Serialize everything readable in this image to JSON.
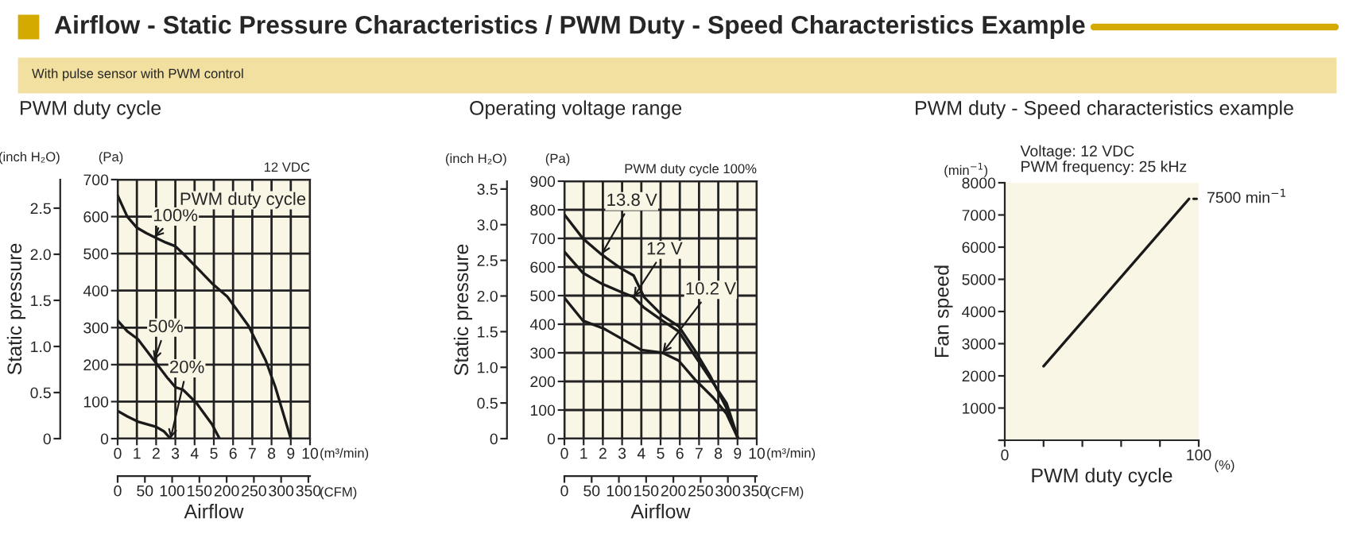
{
  "chart_data": [
    {
      "type": "line",
      "title": "PWM duty cycle",
      "xlabel": "Airflow",
      "y2label": "Static pressure",
      "legend_title": "PWM duty cycle",
      "annotations": [
        "Airflow - Static Pressure Characteristics / PWM Duty - Speed Characteristics Example",
        "With pulse sensor with PWM control",
        "12 VDC",
        "(inch H₂O)",
        "(Pa)",
        "(m³/min)",
        "(CFM)"
      ],
      "series": [
        {
          "name": "100%",
          "color": "#1a1a1a",
          "x": [
            0,
            0.5,
            1,
            1.5,
            1.9,
            2.5,
            3,
            3.5,
            4.1,
            4.9,
            5.7,
            6.8,
            7.7,
            8.2,
            9
          ],
          "values": [
            657,
            600,
            570,
            555,
            545,
            530,
            520,
            495,
            463,
            420,
            384,
            305,
            211,
            139,
            0
          ]
        },
        {
          "name": "50%",
          "color": "#1a1a1a",
          "x": [
            0,
            0.5,
            1.05,
            1.9,
            2.5,
            3,
            3.4,
            4.1,
            4.9,
            5.3
          ],
          "values": [
            319,
            290,
            269,
            211,
            170,
            139,
            132,
            96,
            39,
            0
          ]
        },
        {
          "name": "20%",
          "color": "#1a1a1a",
          "x": [
            0,
            0.5,
            1.05,
            2,
            2.4,
            2.75
          ],
          "values": [
            75,
            60,
            46,
            32,
            20,
            0
          ]
        }
      ],
      "xlim": [
        0,
        10
      ],
      "xticks": [
        0,
        1,
        2,
        3,
        4,
        5,
        6,
        7,
        8,
        9,
        10
      ],
      "x2lim": [
        0,
        353
      ],
      "x2ticks": [
        0,
        50,
        100,
        150,
        200,
        250,
        300,
        350
      ],
      "ylim": [
        0,
        700
      ],
      "yticks": [
        0,
        100,
        200,
        300,
        400,
        500,
        600,
        700
      ],
      "legend": "bottom left",
      "y2lim": [
        0,
        2.81
      ],
      "y2ticks": [
        0,
        0.5,
        {
          "value": 1,
          "label": "1.0"
        },
        1.5,
        {
          "value": 2,
          "label": "2.0"
        },
        2.5
      ],
      "grid": true
    },
    {
      "type": "line",
      "title": "Operating voltage range",
      "xlabel": "Airflow",
      "y2label": "Static pressure",
      "annotations": [
        "PWM duty cycle 100%",
        "(inch H₂O)",
        "(Pa)",
        "(m³/min)",
        "(CFM)"
      ],
      "series": [
        {
          "name": "13.8 V",
          "color": "#1a1a1a",
          "x": [
            0,
            0.97,
            1.93,
            2.9,
            3.6,
            4.14,
            5.1,
            5.94,
            6.77,
            7.6,
            8.43,
            9.03
          ],
          "values": [
            783,
            699,
            644,
            597,
            570,
            495,
            430,
            393,
            310,
            217,
            106,
            0
          ]
        },
        {
          "name": "12 V",
          "color": "#1a1a1a",
          "x": [
            0,
            0.97,
            1.93,
            2.9,
            3.6,
            4.14,
            5.1,
            5.94,
            6.77,
            7.6,
            8.43,
            9.03
          ],
          "values": [
            653,
            579,
            542,
            514,
            495,
            458,
            412,
            375,
            291,
            208,
            124,
            0
          ]
        },
        {
          "name": "10.2 V",
          "color": "#1a1a1a",
          "x": [
            0,
            0.97,
            2.07,
            3.04,
            4.0,
            5.1,
            5.94,
            6.77,
            7.74,
            8.43,
            9.03
          ],
          "values": [
            492,
            412,
            384,
            347,
            310,
            300,
            273,
            208,
            143,
            87,
            0
          ]
        }
      ],
      "xlim": [
        0,
        10
      ],
      "xticks": [
        0,
        1,
        2,
        3,
        4,
        5,
        6,
        7,
        8,
        9,
        10
      ],
      "x2lim": [
        0,
        353
      ],
      "x2ticks": [
        0,
        50,
        100,
        150,
        200,
        250,
        300,
        350
      ],
      "ylim": [
        0,
        900
      ],
      "yticks": [
        0,
        100,
        200,
        300,
        400,
        500,
        600,
        700,
        800,
        900
      ],
      "legend": "top",
      "y2lim": [
        0,
        3.61
      ],
      "y2ticks": [
        0,
        0.5,
        {
          "value": 1,
          "label": "1.0"
        },
        1.5,
        {
          "value": 2,
          "label": "2.0"
        },
        2.5,
        {
          "value": 3,
          "label": "3.0"
        },
        3.5
      ],
      "grid": true
    },
    {
      "type": "line",
      "title": "PWM duty - Speed characteristics example",
      "xlabel": "PWM duty cycle",
      "ylabel": "Fan speed",
      "annotations": [
        "Voltage: 12 VDC\nPWM frequency: 25 kHz",
        "(min$^{−1}$)",
        "(%)",
        {
          "text": "7500 min$^{−1}$",
          "x": 95,
          "y": 7500
        }
      ],
      "series": [
        {
          "color": "#1a1a1a",
          "x": [
            20,
            95
          ],
          "values": [
            2300,
            7500
          ]
        }
      ],
      "xlim": [
        0,
        100
      ],
      "xticks": [
        0,
        {
          "value": 20,
          "label": null
        },
        {
          "value": 40,
          "label": null
        },
        {
          "value": 60,
          "label": null
        },
        {
          "value": 80,
          "label": null
        },
        100
      ],
      "ylim": [
        0,
        8000
      ],
      "yticks": [
        {
          "value": 0,
          "label": null
        },
        1000,
        2000,
        3000,
        4000,
        5000,
        6000,
        7000,
        8000
      ],
      "grid": false
    }
  ]
}
